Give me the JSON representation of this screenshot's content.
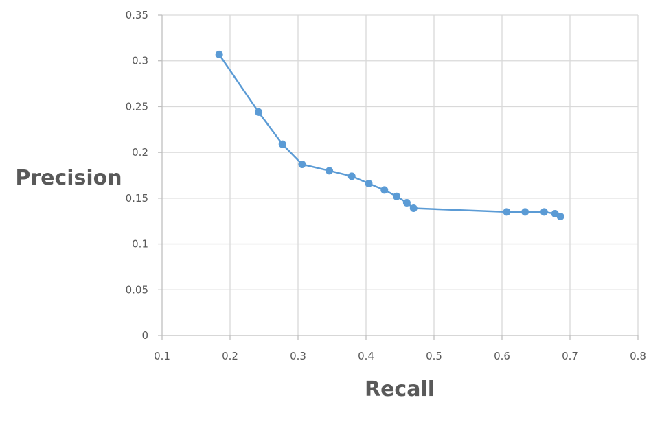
{
  "chart_data": {
    "type": "line",
    "title": "",
    "xlabel": "Recall",
    "ylabel": "Precision",
    "xlim": [
      0.1,
      0.8
    ],
    "ylim": [
      0,
      0.35
    ],
    "x_ticks": [
      "0.1",
      "0.2",
      "0.3",
      "0.4",
      "0.5",
      "0.6",
      "0.7",
      "0.8"
    ],
    "y_ticks": [
      "0",
      "0.05",
      "0.1",
      "0.15",
      "0.2",
      "0.25",
      "0.3",
      "0.35"
    ],
    "grid": true,
    "legend": "none",
    "series": [
      {
        "color": "#5b9bd5",
        "x": [
          0.184,
          0.242,
          0.277,
          0.306,
          0.346,
          0.379,
          0.404,
          0.427,
          0.445,
          0.46,
          0.47,
          0.607,
          0.634,
          0.662,
          0.678,
          0.686
        ],
        "y": [
          0.307,
          0.244,
          0.209,
          0.187,
          0.18,
          0.174,
          0.166,
          0.159,
          0.152,
          0.145,
          0.139,
          0.135,
          0.135,
          0.135,
          0.133,
          0.13
        ]
      }
    ]
  }
}
